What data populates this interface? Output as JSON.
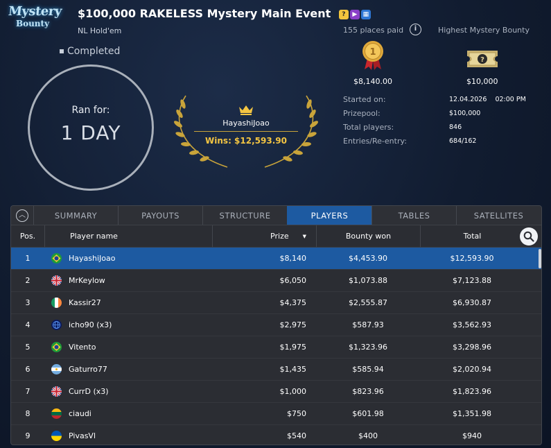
{
  "logo": {
    "line1": "Mystery",
    "line2": "Bounty"
  },
  "header": {
    "title": "$100,000 RAKELESS Mystery Main Event",
    "game": "NL Hold'em",
    "status": "Completed",
    "title_icons": [
      "mystery-bounty-icon",
      "video-icon",
      "calendar-icon"
    ]
  },
  "duration": {
    "label": "Ran for:",
    "value": "1 DAY"
  },
  "winner": {
    "name": "HayashiJoao",
    "wins": "Wins: $12,593.90"
  },
  "places_paid": "155 places paid",
  "highest_bounty_label": "Highest Mystery Bounty",
  "first_prize": "$8,140.00",
  "highest_bounty": "$10,000",
  "stats": [
    {
      "label": "Started on:",
      "value": "12.04.2026    02:00 PM"
    },
    {
      "label": "Prizepool:",
      "value": "$100,000"
    },
    {
      "label": "Total players:",
      "value": "846"
    },
    {
      "label": "Entries/Re-entry:",
      "value": "684/162"
    }
  ],
  "tabs": [
    "SUMMARY",
    "PAYOUTS",
    "STRUCTURE",
    "PLAYERS",
    "TABLES",
    "SATELLITES"
  ],
  "active_tab": "PLAYERS",
  "columns": {
    "pos": "Pos.",
    "name": "Player name",
    "prize": "Prize",
    "bounty": "Bounty won",
    "total": "Total"
  },
  "rows": [
    {
      "pos": "1",
      "flag": "brazil",
      "name": "HayashiJoao",
      "prize": "$8,140",
      "bounty": "$4,453.90",
      "total": "$12,593.90"
    },
    {
      "pos": "2",
      "flag": "uk",
      "name": "MrKeylow",
      "prize": "$6,050",
      "bounty": "$1,073.88",
      "total": "$7,123.88"
    },
    {
      "pos": "3",
      "flag": "ireland",
      "name": "Kassir27",
      "prize": "$4,375",
      "bounty": "$2,555.87",
      "total": "$6,930.87"
    },
    {
      "pos": "4",
      "flag": "globe",
      "name": "icho90 (x3)",
      "prize": "$2,975",
      "bounty": "$587.93",
      "total": "$3,562.93"
    },
    {
      "pos": "5",
      "flag": "brazil",
      "name": "Vitento",
      "prize": "$1,975",
      "bounty": "$1,323.96",
      "total": "$3,298.96"
    },
    {
      "pos": "6",
      "flag": "argentina",
      "name": "Gaturro77",
      "prize": "$1,435",
      "bounty": "$585.94",
      "total": "$2,020.94"
    },
    {
      "pos": "7",
      "flag": "uk",
      "name": "CurrD (x3)",
      "prize": "$1,000",
      "bounty": "$823.96",
      "total": "$1,823.96"
    },
    {
      "pos": "8",
      "flag": "lithuania",
      "name": "ciaudi",
      "prize": "$750",
      "bounty": "$601.98",
      "total": "$1,351.98"
    },
    {
      "pos": "9",
      "flag": "ukraine",
      "name": "PivasVl",
      "prize": "$540",
      "bounty": "$400",
      "total": "$940"
    }
  ],
  "colors": {
    "accent": "#1d5aa1",
    "gold": "#f4c542",
    "panel": "#2b2d33"
  }
}
